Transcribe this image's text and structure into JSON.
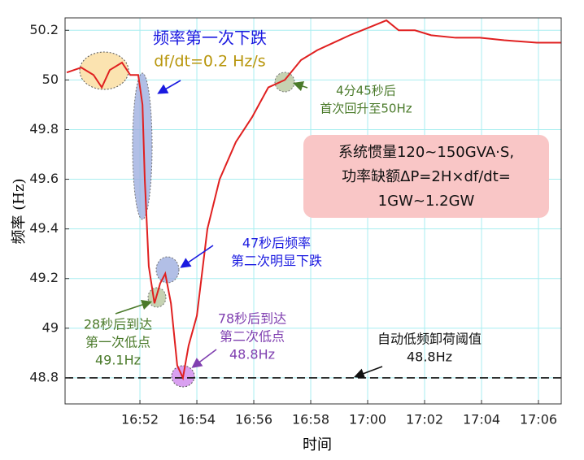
{
  "chart_data": {
    "type": "line",
    "x_label": "时间",
    "y_label": "频率 (Hz)",
    "x": [
      49.43,
      49.94,
      50.37,
      50.66,
      50.94,
      51.37,
      51.66,
      51.94,
      52.09,
      52.17,
      52.31,
      52.51,
      52.71,
      52.89,
      53.09,
      53.31,
      53.51,
      53.71,
      54.0,
      54.37,
      54.8,
      55.37,
      55.94,
      56.51,
      57.09,
      57.66,
      58.23,
      58.8,
      59.37,
      59.8,
      60.23,
      60.66,
      61.09,
      61.66,
      62.23,
      63.09,
      63.94,
      64.8,
      65.94,
      66.8
    ],
    "series": [
      {
        "name": "频率",
        "color": "#e02020",
        "values": [
          50.03,
          50.05,
          50.02,
          49.97,
          50.04,
          50.07,
          50.02,
          50.02,
          49.9,
          49.6,
          49.25,
          49.1,
          49.18,
          49.22,
          49.1,
          48.85,
          48.8,
          48.93,
          49.05,
          49.4,
          49.6,
          49.75,
          49.85,
          49.97,
          50.0,
          50.08,
          50.12,
          50.15,
          50.18,
          50.2,
          50.22,
          50.24,
          50.2,
          50.2,
          50.18,
          50.17,
          50.17,
          50.16,
          50.15,
          50.15
        ]
      }
    ],
    "xlim": [
      49.37,
      66.8
    ],
    "xticks": [
      {
        "value": 52,
        "label": "16:52"
      },
      {
        "value": 54,
        "label": "16:54"
      },
      {
        "value": 56,
        "label": "16:56"
      },
      {
        "value": 58,
        "label": "16:58"
      },
      {
        "value": 60,
        "label": "17:00"
      },
      {
        "value": 62,
        "label": "17:02"
      },
      {
        "value": 64,
        "label": "17:04"
      },
      {
        "value": 66,
        "label": "17:06"
      }
    ],
    "ylim": [
      48.695,
      50.25
    ],
    "yticks": [
      48.8,
      49,
      49.2,
      49.4,
      49.6,
      49.8,
      50,
      50.2
    ],
    "grid": true,
    "grid_color": "#a8eef0",
    "threshold": {
      "value": 48.8,
      "color": "#111111"
    },
    "annotations": [
      {
        "lines": [
          "频率第一次下跌"
        ],
        "color": "#1a1ae0"
      },
      {
        "lines": [
          "df/dt=0.2 Hz/s"
        ],
        "color": "#b8960c"
      },
      {
        "lines": [
          "4分45秒后",
          "首次回升至50Hz"
        ],
        "color": "#4a7a2a"
      },
      {
        "lines": [
          "47秒后频率",
          "第二次明显下跌"
        ],
        "color": "#1a1ae0"
      },
      {
        "lines": [
          "28秒后到达",
          "第一次低点",
          "49.1Hz"
        ],
        "color": "#4a7a2a"
      },
      {
        "lines": [
          "78秒后到达",
          "第二次低点",
          "48.8Hz"
        ],
        "color": "#8040b0"
      },
      {
        "lines": [
          "自动低频卸荷阈值",
          "48.8Hz"
        ],
        "color": "#111111"
      }
    ],
    "box": {
      "lines": [
        "系统惯量120~150GVA·S,",
        "功率缺额ΔP=2H×df/dt=",
        "1GW~1.2GW"
      ],
      "color": "#f9c6c6"
    }
  }
}
